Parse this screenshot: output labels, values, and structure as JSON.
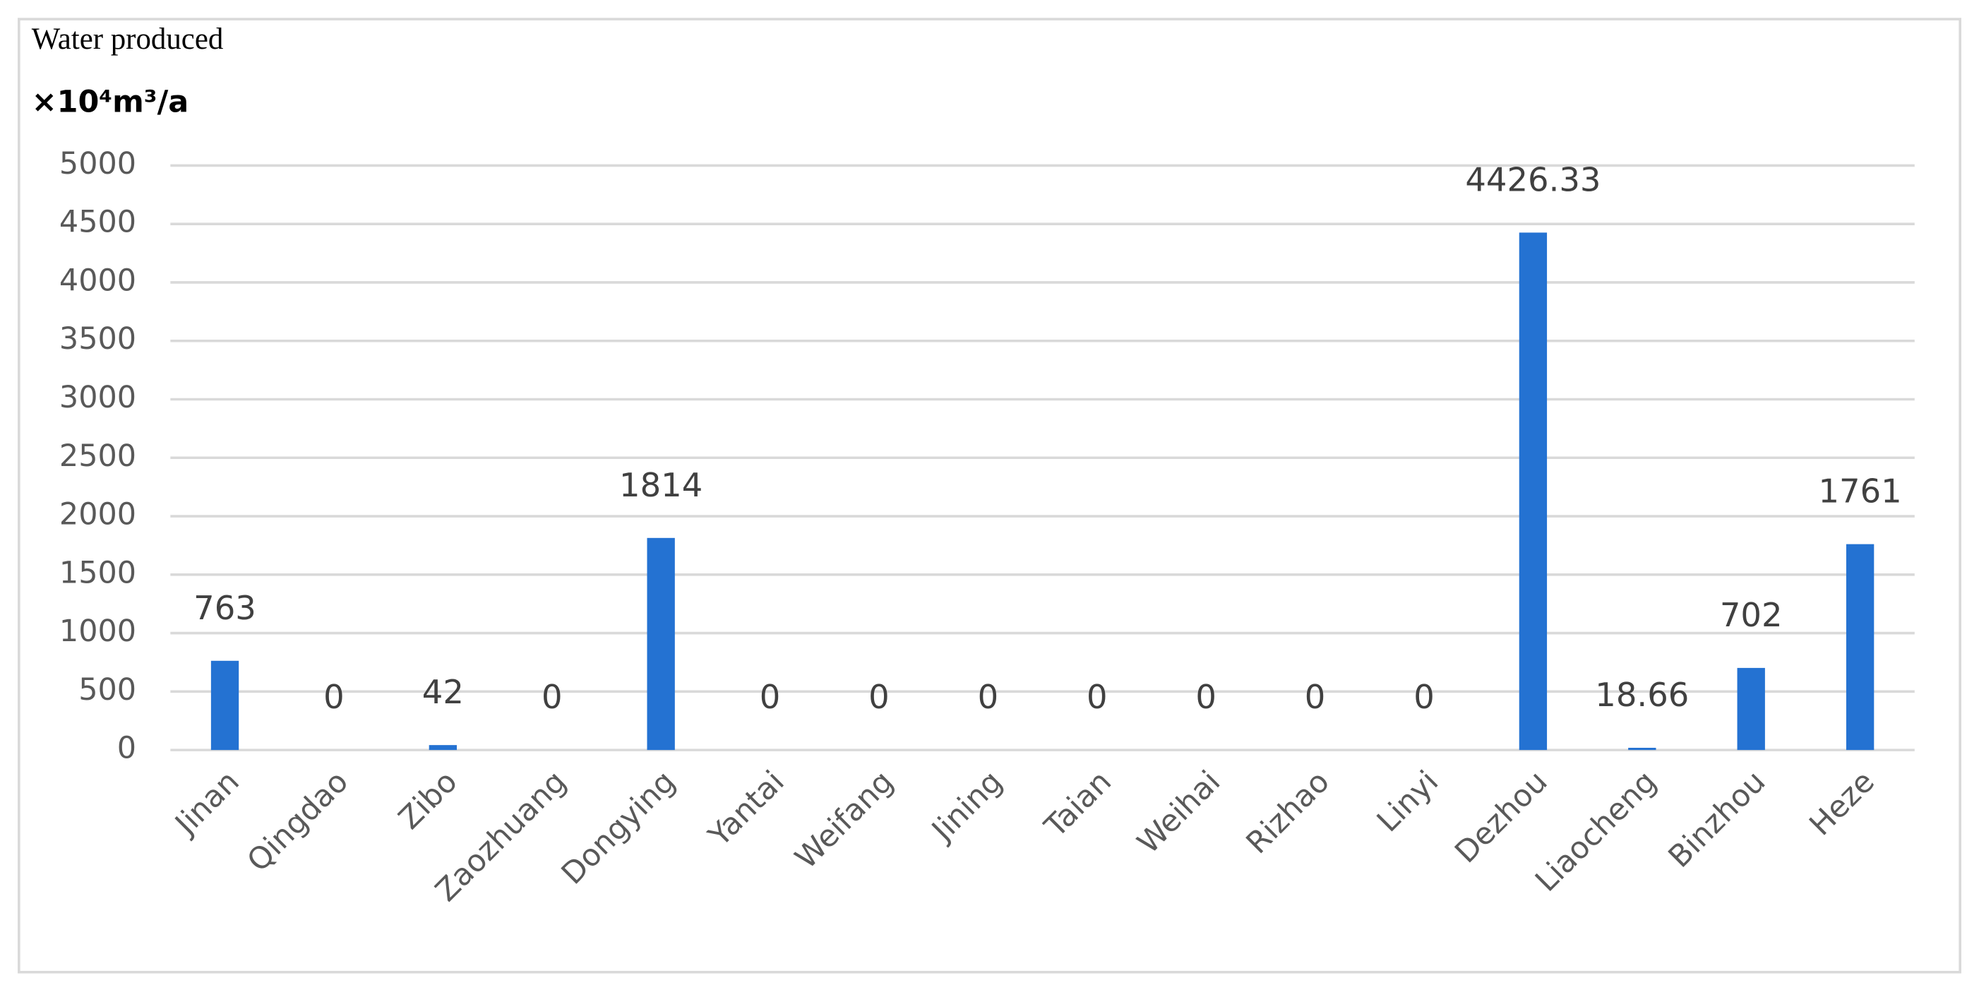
{
  "chart_data": {
    "type": "bar",
    "title": "Water produced",
    "unit_label": "×10⁴m³/a",
    "categories": [
      "Jinan",
      "Qingdao",
      "Zibo",
      "Zaozhuang",
      "Dongying",
      "Yantai",
      "Weifang",
      "Jining",
      "Taian",
      "Weihai",
      "Rizhao",
      "Linyi",
      "Dezhou",
      "Liaocheng",
      "Binzhou",
      "Heze"
    ],
    "values": [
      763,
      0,
      42,
      0,
      1814,
      0,
      0,
      0,
      0,
      0,
      0,
      0,
      4426.33,
      18.66,
      702,
      1761
    ],
    "color": "#2472d2",
    "ylim": [
      0,
      5000
    ],
    "yticks": [
      0,
      500,
      1000,
      1500,
      2000,
      2500,
      3000,
      3500,
      4000,
      4500,
      5000
    ],
    "grid": true
  }
}
